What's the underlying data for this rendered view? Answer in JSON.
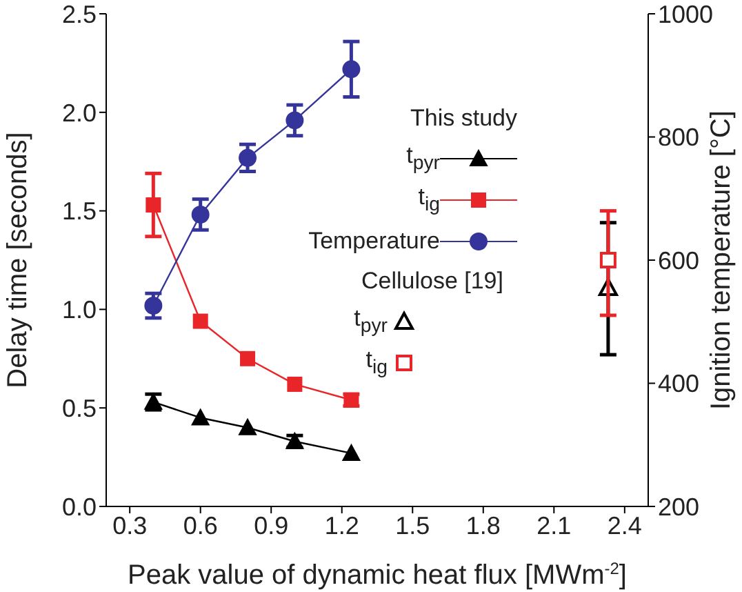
{
  "chart_data": {
    "type": "line",
    "xlabel": "Peak value of dynamic heat flux [MWm$^{-2}$]",
    "ylabel": "Delay time [seconds]",
    "y2label": "Ignition temperature [°C]",
    "x": [
      0.4,
      0.6,
      0.8,
      1.0,
      1.24
    ],
    "xlim": [
      0.2,
      2.5
    ],
    "xticks": [
      0.3,
      0.6,
      0.9,
      1.2,
      1.5,
      1.8,
      2.1,
      2.4
    ],
    "ylim": [
      0,
      2.5
    ],
    "yticks": [
      {
        "value": 0,
        "label": "0.0"
      },
      0.5,
      {
        "value": 1,
        "label": "1.0"
      },
      1.5,
      {
        "value": 2,
        "label": "2.0"
      },
      2.5
    ],
    "y2lim": [
      200,
      1000
    ],
    "y2ticks": [
      200,
      400,
      600,
      800,
      1000
    ],
    "legend": "right",
    "grid": false,
    "line_style": "solid",
    "annotations": [
      "This study",
      "Cellulose [19]"
    ],
    "series": [
      {
        "name": "t$_{pyr}$",
        "color": "#000000",
        "marker": "triangle",
        "values": [
          0.53,
          0.45,
          0.4,
          0.33,
          0.27
        ],
        "errors": [
          0.04,
          null,
          null,
          0.03,
          null
        ]
      },
      {
        "name": "t$_{ig}$",
        "color": "#e8262a",
        "marker": "square",
        "values": [
          1.53,
          0.94,
          0.75,
          0.62,
          0.54
        ],
        "errors": [
          0.16,
          null,
          null,
          null,
          0.03
        ]
      },
      {
        "name": "Temperature",
        "color": "#34349a",
        "marker": "circle",
        "axis": "y2",
        "values": [
          526,
          674,
          766,
          827,
          910
        ],
        "errors": [
          20,
          25,
          22,
          25,
          45
        ]
      },
      {
        "type": "scatter",
        "name": "t$_{pyr}$",
        "color": "#000000",
        "marker": "triangle",
        "x": [
          2.33
        ],
        "values": [
          1.11
        ],
        "errors": [
          [
            0.77,
            1.44
          ]
        ]
      },
      {
        "type": "scatter",
        "name": "t$_{ig}$",
        "color": "#e8262a",
        "marker": "square",
        "x": [
          2.33
        ],
        "values": [
          1.25
        ],
        "errors": [
          [
            0.97,
            1.5
          ]
        ]
      }
    ]
  }
}
